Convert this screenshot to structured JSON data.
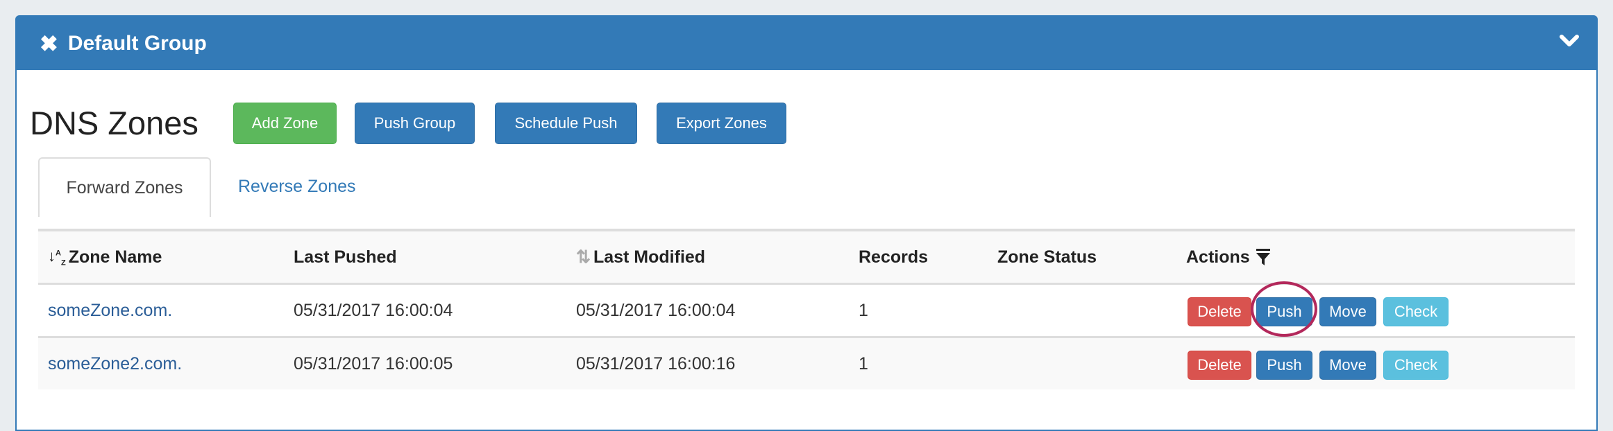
{
  "panel": {
    "title": "Default Group",
    "close_icon": "x-icon",
    "collapse_icon": "chevron-down-icon"
  },
  "page": {
    "title": "DNS Zones"
  },
  "toolbar": {
    "add_zone": "Add Zone",
    "push_group": "Push Group",
    "schedule_push": "Schedule Push",
    "export_zones": "Export Zones"
  },
  "tabs": [
    {
      "label": "Forward Zones",
      "active": true
    },
    {
      "label": "Reverse Zones",
      "active": false
    }
  ],
  "table": {
    "headers": {
      "zone_name": "Zone Name",
      "last_pushed": "Last Pushed",
      "last_modified": "Last Modified",
      "records": "Records",
      "zone_status": "Zone Status",
      "actions": "Actions"
    },
    "rows": [
      {
        "zone_name": "someZone.com.",
        "last_pushed": "05/31/2017 16:00:04",
        "last_modified": "05/31/2017 16:00:04",
        "records": "1",
        "zone_status": ""
      },
      {
        "zone_name": "someZone2.com.",
        "last_pushed": "05/31/2017 16:00:05",
        "last_modified": "05/31/2017 16:00:16",
        "records": "1",
        "zone_status": ""
      }
    ],
    "actions": {
      "delete": "Delete",
      "push": "Push",
      "move": "Move",
      "check": "Check"
    }
  },
  "colors": {
    "primary": "#337ab7",
    "success": "#5cb85c",
    "danger": "#d9534f",
    "info": "#5bc0de",
    "highlight": "#b3285b"
  }
}
